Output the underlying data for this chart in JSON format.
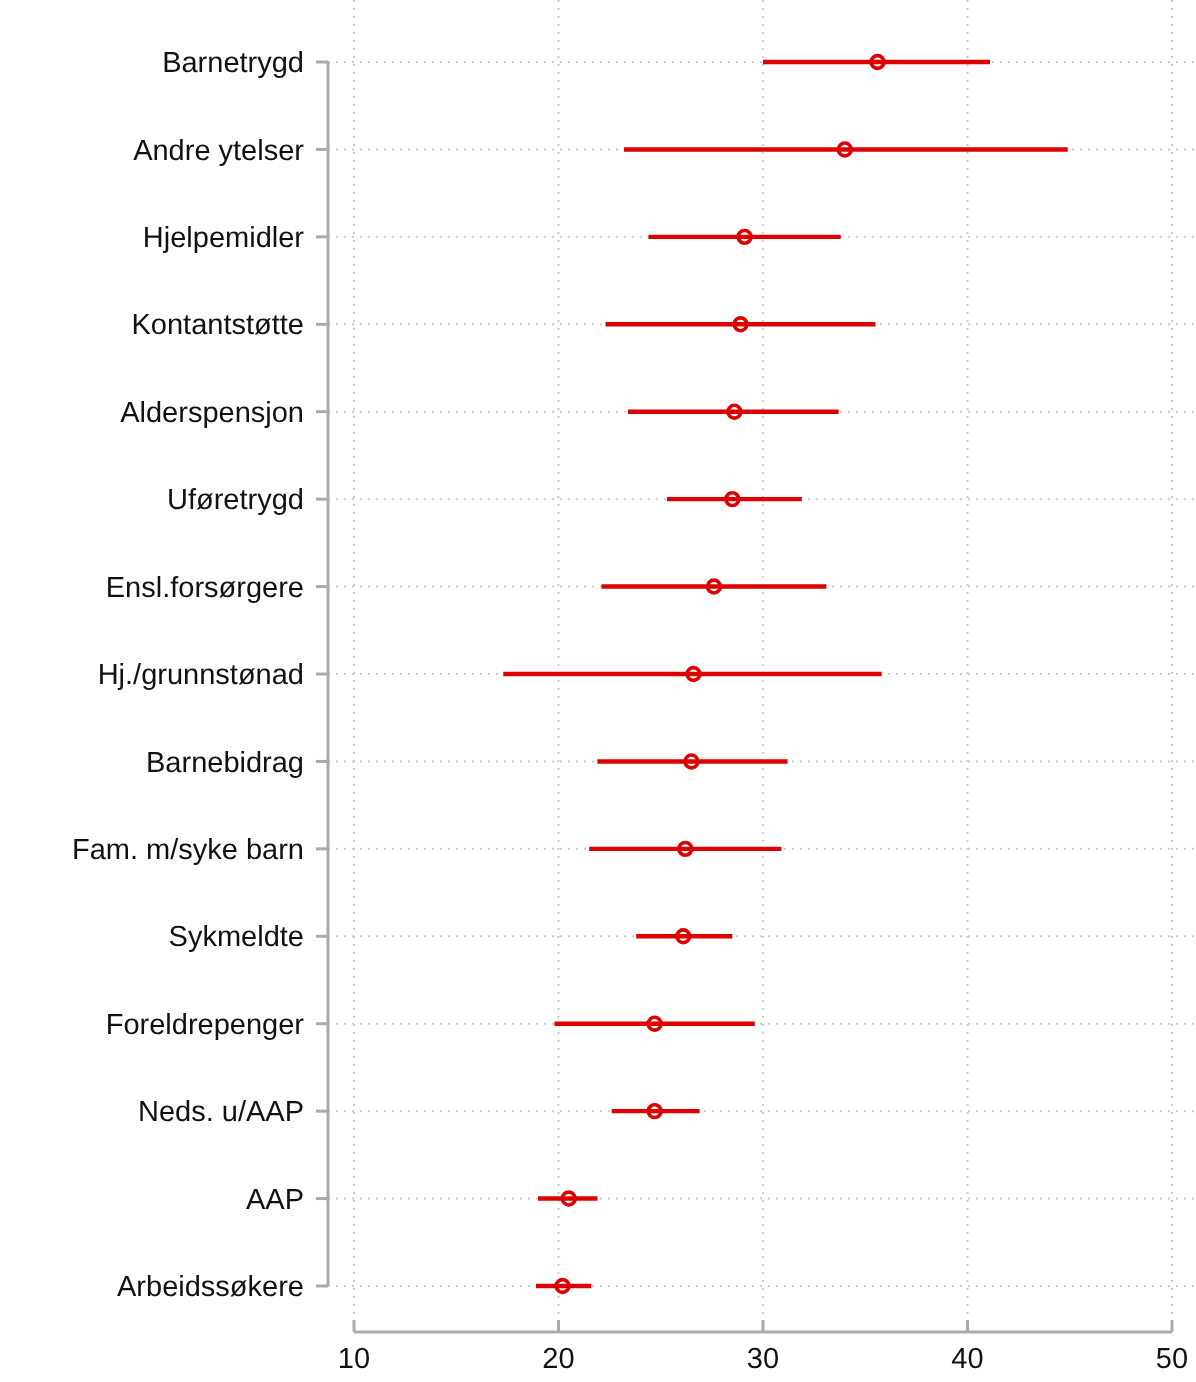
{
  "chart_data": {
    "type": "scatter",
    "orientation": "horizontal",
    "categories": [
      "Barnetrygd",
      "Andre ytelser",
      "Hjelpemidler",
      "Kontantstøtte",
      "Alderspensjon",
      "Uføretrygd",
      "Ensl.forsørgere",
      "Hj./grunnstønad",
      "Barnebidrag",
      "Fam. m/syke barn",
      "Sykmeldte",
      "Foreldrepenger",
      "Neds. u/AAP",
      "AAP",
      "Arbeidssøkere"
    ],
    "values": [
      35.6,
      34.0,
      29.1,
      28.9,
      28.6,
      28.5,
      27.6,
      26.6,
      26.5,
      26.2,
      26.1,
      24.7,
      24.7,
      20.5,
      20.2
    ],
    "errors": [
      [
        30.0,
        41.1
      ],
      [
        23.2,
        44.9
      ],
      [
        24.4,
        33.8
      ],
      [
        22.3,
        35.5
      ],
      [
        23.4,
        33.7
      ],
      [
        25.3,
        31.9
      ],
      [
        22.1,
        33.1
      ],
      [
        17.3,
        35.8
      ],
      [
        21.9,
        31.2
      ],
      [
        21.5,
        30.9
      ],
      [
        23.8,
        28.5
      ],
      [
        19.8,
        29.6
      ],
      [
        22.6,
        26.9
      ],
      [
        19.0,
        21.9
      ],
      [
        18.9,
        21.6
      ]
    ],
    "color": "#dd0000",
    "marker": "circle",
    "grid": true,
    "xlim": [
      10,
      50
    ],
    "xticks": [
      10,
      20,
      30,
      40,
      50
    ]
  }
}
